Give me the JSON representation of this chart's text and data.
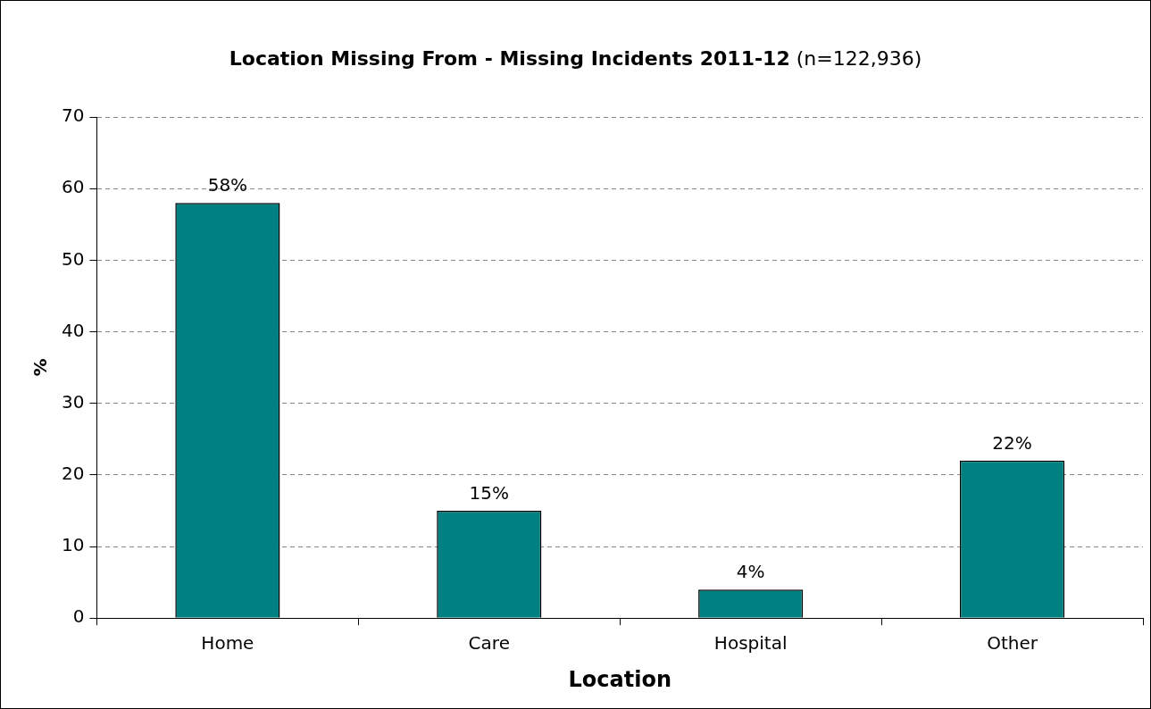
{
  "chart_data": {
    "type": "bar",
    "title": "Location Missing From - Missing Incidents 2011-12",
    "subtitle": "(n=122,936)",
    "xlabel": "Location",
    "ylabel": "%",
    "categories": [
      "Home",
      "Care",
      "Hospital",
      "Other"
    ],
    "values": [
      58,
      15,
      4,
      22
    ],
    "value_labels": [
      "58%",
      "15%",
      "4%",
      "22%"
    ],
    "color": "#008080",
    "ylim": [
      0,
      70
    ],
    "yticks": [
      0,
      10,
      20,
      30,
      40,
      50,
      60,
      70
    ],
    "grid": "y",
    "legend": false
  }
}
